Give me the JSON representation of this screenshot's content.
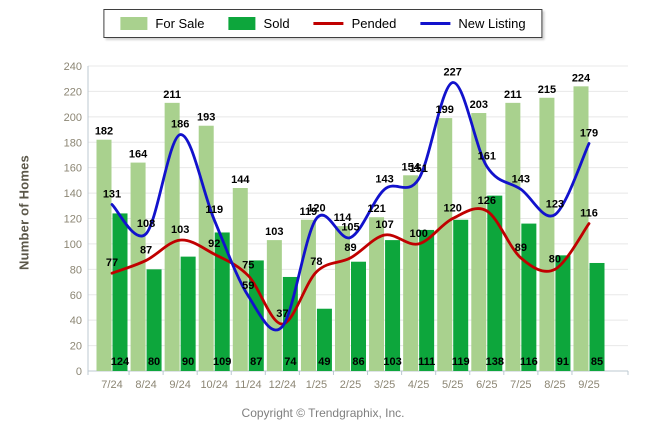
{
  "legend": {
    "items": [
      {
        "label": "For Sale",
        "color": "#A9D18E",
        "type": "box"
      },
      {
        "label": "Sold",
        "color": "#0DA63C",
        "type": "box"
      },
      {
        "label": "Pended",
        "color": "#C00000",
        "type": "line"
      },
      {
        "label": "New Listing",
        "color": "#1212CC",
        "type": "line"
      }
    ]
  },
  "chart_data": {
    "type": "bar",
    "title": "",
    "xlabel": "",
    "ylabel": "Number of Homes",
    "ylim": [
      0,
      240
    ],
    "ytick_step": 20,
    "yticks": [
      0,
      20,
      40,
      60,
      80,
      100,
      120,
      140,
      160,
      180,
      200,
      220,
      240
    ],
    "grid": true,
    "legend_position": "top-center",
    "categories": [
      "7/24",
      "8/24",
      "9/24",
      "10/24",
      "11/24",
      "12/24",
      "1/25",
      "2/25",
      "3/25",
      "4/25",
      "5/25",
      "6/25",
      "7/25",
      "8/25",
      "9/25"
    ],
    "series": [
      {
        "name": "For Sale",
        "kind": "bar",
        "color": "#A9D18E",
        "values": [
          182,
          164,
          211,
          193,
          144,
          103,
          119,
          114,
          121,
          154,
          199,
          203,
          211,
          215,
          224
        ]
      },
      {
        "name": "Sold",
        "kind": "bar",
        "color": "#0DA63C",
        "label_position": "inside-bottom",
        "values": [
          124,
          80,
          90,
          109,
          87,
          74,
          49,
          86,
          103,
          111,
          119,
          138,
          116,
          91,
          85
        ]
      },
      {
        "name": "Pended",
        "kind": "line",
        "color": "#C00000",
        "values": [
          77,
          87,
          103,
          92,
          75,
          37,
          78,
          89,
          107,
          100,
          120,
          126,
          89,
          80,
          116
        ]
      },
      {
        "name": "New Listing",
        "kind": "line",
        "color": "#1212CC",
        "values": [
          131,
          108,
          186,
          119,
          59,
          35,
          120,
          105,
          143,
          151,
          227,
          161,
          143,
          123,
          179
        ],
        "labels": [
          "131",
          "108",
          "186",
          "119",
          "59",
          "",
          "120",
          "105",
          "143",
          "151",
          "227",
          "161",
          "143",
          "123",
          "179"
        ]
      }
    ]
  },
  "footer": {
    "copyright": "Copyright © Trendgraphix, Inc."
  }
}
